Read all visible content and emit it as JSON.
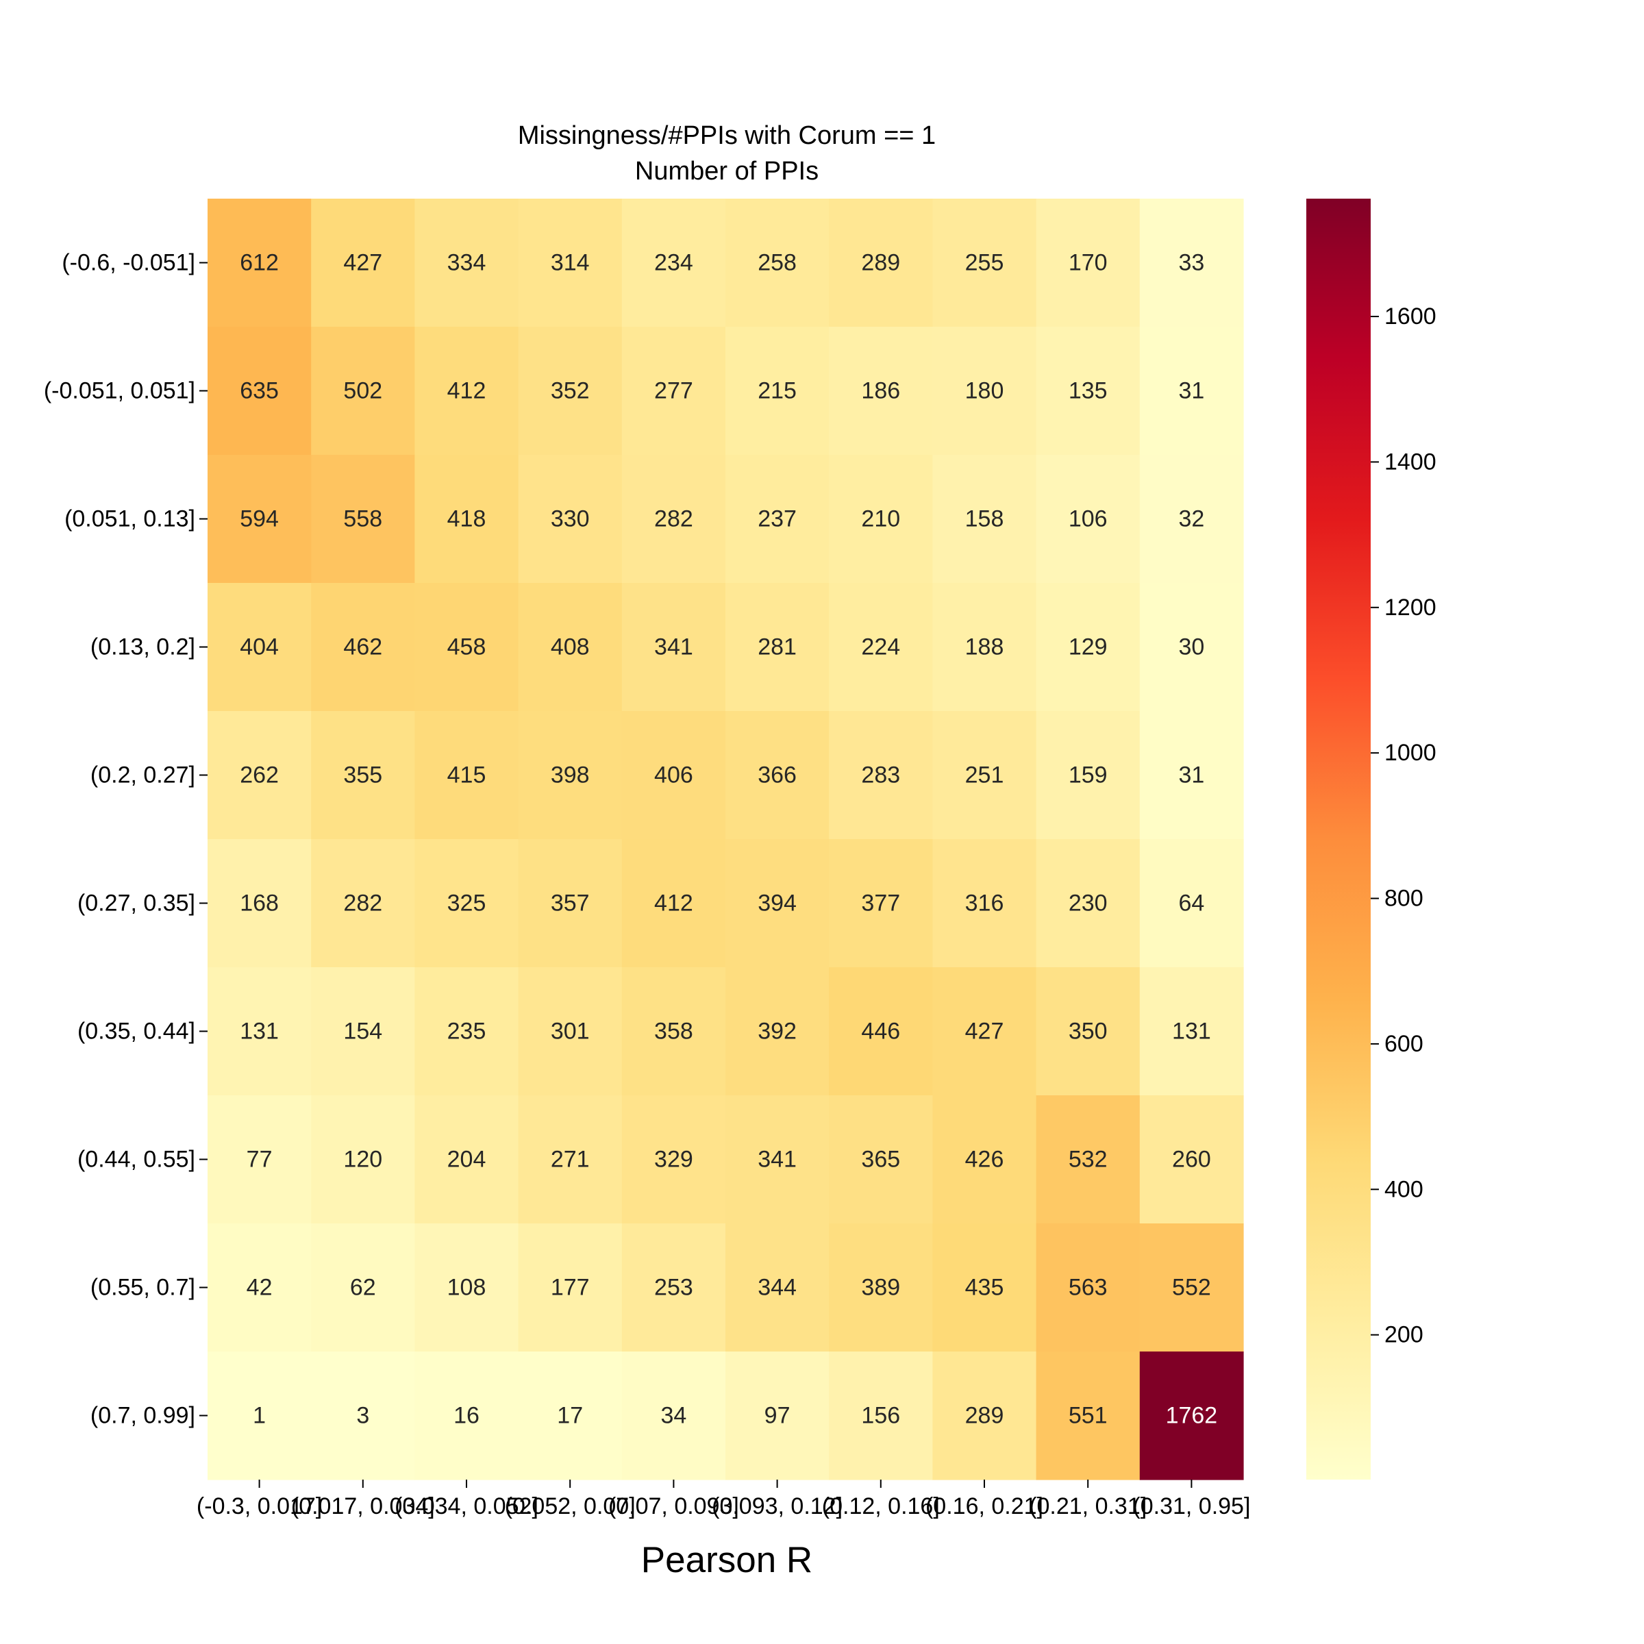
{
  "chart_data": {
    "type": "heatmap",
    "title": "Missingness/#PPIs with Corum == 1",
    "subtitle": "Number of PPIs",
    "xlabel": "Pearson R",
    "ylabel": "",
    "x_categories": [
      "(-0.3, 0.017]",
      "(0.017, 0.034]",
      "(0.034, 0.052]",
      "(0.052, 0.07]",
      "(0.07, 0.093]",
      "(0.093, 0.12]",
      "(0.12, 0.16]",
      "(0.16, 0.21]",
      "(0.21, 0.31]",
      "(0.31, 0.95]"
    ],
    "y_categories": [
      "(-0.6, -0.051]",
      "(-0.051, 0.051]",
      "(0.051, 0.13]",
      "(0.13, 0.2]",
      "(0.2, 0.27]",
      "(0.27, 0.35]",
      "(0.35, 0.44]",
      "(0.44, 0.55]",
      "(0.55, 0.7]",
      "(0.7, 0.99]"
    ],
    "values": [
      [
        612,
        427,
        334,
        314,
        234,
        258,
        289,
        255,
        170,
        33
      ],
      [
        635,
        502,
        412,
        352,
        277,
        215,
        186,
        180,
        135,
        31
      ],
      [
        594,
        558,
        418,
        330,
        282,
        237,
        210,
        158,
        106,
        32
      ],
      [
        404,
        462,
        458,
        408,
        341,
        281,
        224,
        188,
        129,
        30
      ],
      [
        262,
        355,
        415,
        398,
        406,
        366,
        283,
        251,
        159,
        31
      ],
      [
        168,
        282,
        325,
        357,
        412,
        394,
        377,
        316,
        230,
        64
      ],
      [
        131,
        154,
        235,
        301,
        358,
        392,
        446,
        427,
        350,
        131
      ],
      [
        77,
        120,
        204,
        271,
        329,
        341,
        365,
        426,
        532,
        260
      ],
      [
        42,
        62,
        108,
        177,
        253,
        344,
        389,
        435,
        563,
        552
      ],
      [
        1,
        3,
        16,
        17,
        34,
        97,
        156,
        289,
        551,
        1762
      ]
    ],
    "colormap": "YlOrRd",
    "vmin": 1,
    "vmax": 1762,
    "colorbar_ticks": [
      200,
      400,
      600,
      800,
      1000,
      1200,
      1400,
      1600
    ],
    "annotations": true,
    "grid": false
  }
}
